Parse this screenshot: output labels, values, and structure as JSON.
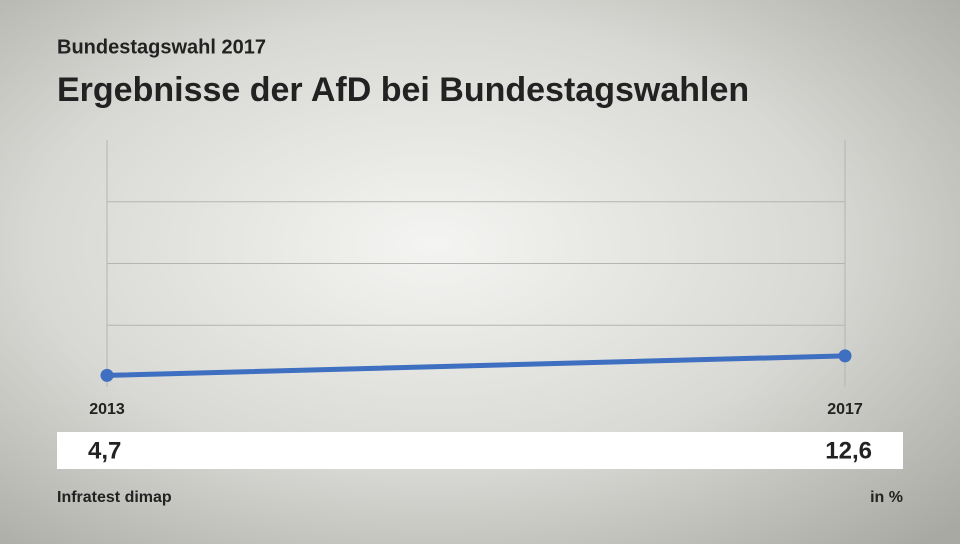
{
  "chart_data": {
    "type": "line",
    "subtitle": "Bundestagswahl 2017",
    "title": "Ergebnisse der AfD bei Bundestagswahlen",
    "x": [
      2013,
      2017
    ],
    "series": [
      {
        "name": "AfD",
        "color": "#3e6fc1",
        "values": [
          4.7,
          12.6
        ],
        "value_labels": [
          "4,7",
          "12,6"
        ]
      }
    ],
    "xlim": [
      2013,
      2017
    ],
    "xticks": [
      2013,
      2017
    ],
    "ylim": [
      0,
      100
    ],
    "yticks": [
      25,
      50,
      75
    ],
    "show_ytick_labels": false,
    "grid": true,
    "source": "Infratest dimap",
    "unit": "in %"
  }
}
